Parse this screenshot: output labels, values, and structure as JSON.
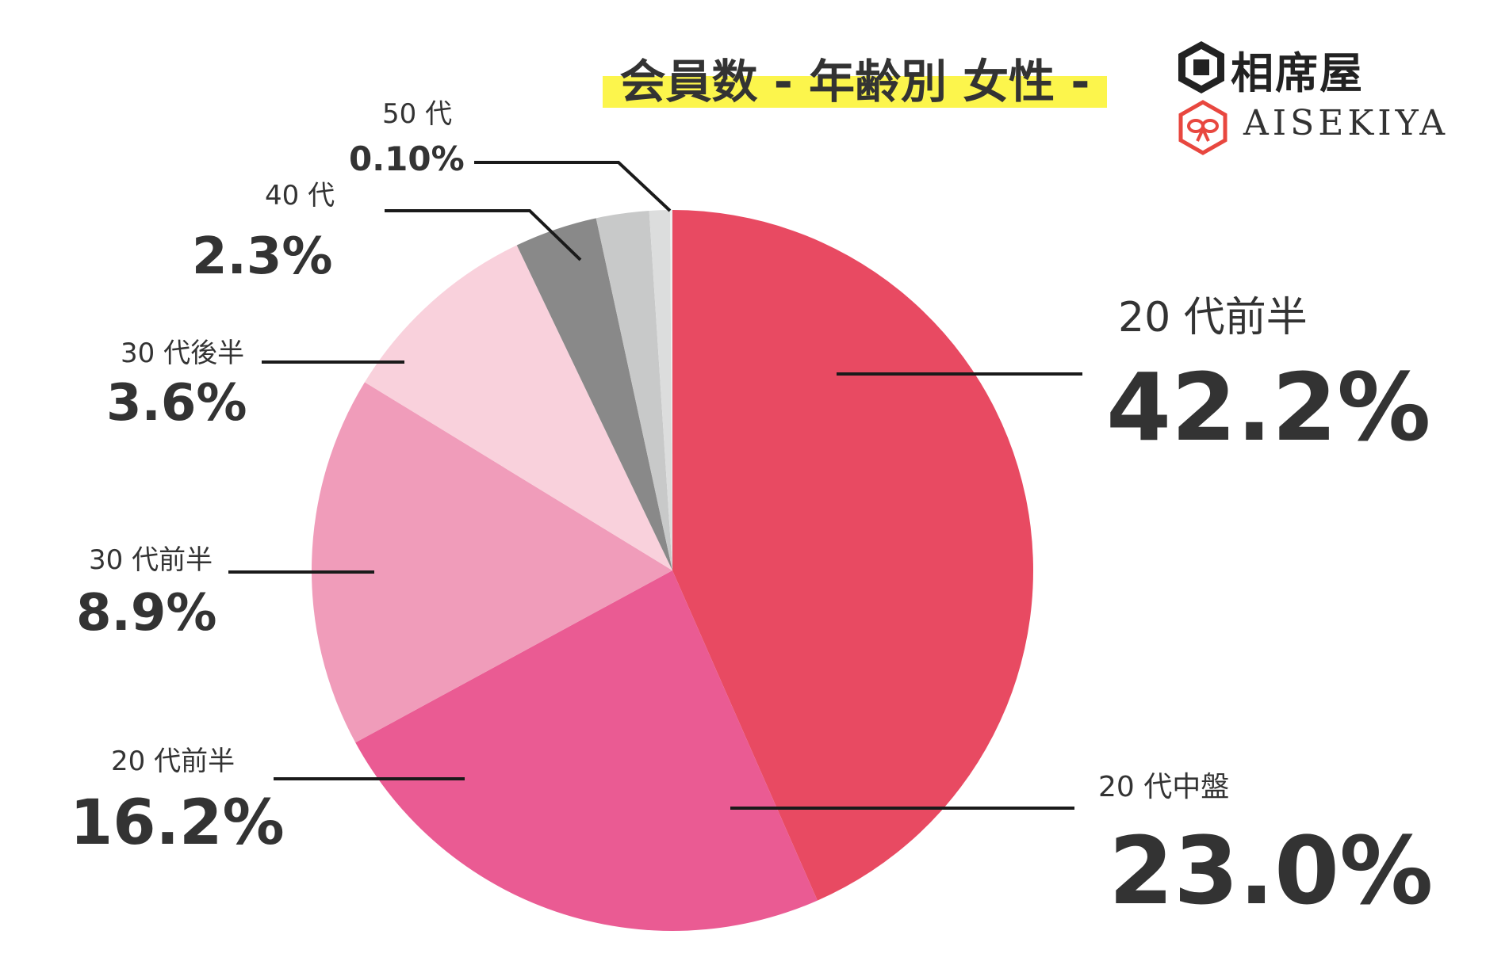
{
  "title": "会員数 - 年齢別 女性 -",
  "logo": {
    "name_jp": "相席屋",
    "name_en": "AISEKIYA",
    "brand_color": "#e8473f"
  },
  "chart_data": {
    "type": "pie",
    "title": "会員数 - 年齢別 女性 -",
    "start": "12 o'clock, clockwise",
    "slices": [
      {
        "label": "20 代前半",
        "value": 42.2,
        "value_label": "42.2%",
        "color": "#e84a62"
      },
      {
        "label": "20 代中盤",
        "value": 23.0,
        "value_label": "23.0%",
        "color": "#ea5b93"
      },
      {
        "label": "20 代前半",
        "value": 16.2,
        "value_label": "16.2%",
        "color": "#f09cba"
      },
      {
        "label": "30 代前半",
        "value": 8.9,
        "value_label": "8.9%",
        "color": "#f9d1dc"
      },
      {
        "label": "30 代後半",
        "value": 3.6,
        "value_label": "3.6%",
        "color": "#898989"
      },
      {
        "label": "40 代",
        "value": 2.3,
        "value_label": "2.3%",
        "color": "#c8c9c9"
      },
      {
        "label": "",
        "value": 0.9,
        "value_label": "",
        "color": "#dcdddd"
      },
      {
        "label": "50 代",
        "value": 0.1,
        "value_label": "0.10%",
        "color": "#eeeeee"
      }
    ]
  }
}
